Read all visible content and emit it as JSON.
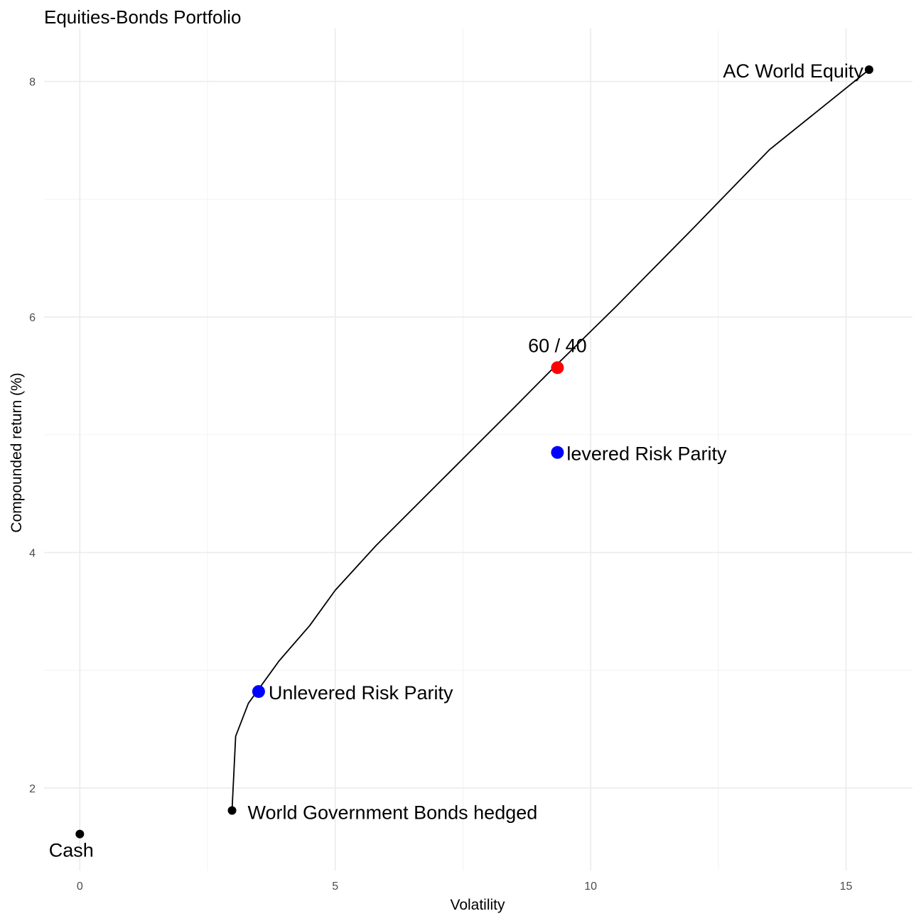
{
  "chart_data": {
    "type": "scatter",
    "title": "Equities-Bonds Portfolio",
    "xlabel": "Volatility",
    "ylabel": "Compounded return (%)",
    "xlim": [
      -0.7,
      16.3
    ],
    "ylim": [
      1.3,
      8.45
    ],
    "x_ticks": [
      0,
      5,
      10,
      15
    ],
    "y_ticks": [
      2,
      4,
      6,
      8
    ],
    "grid": true,
    "frontier": {
      "x": [
        2.98,
        3.05,
        3.3,
        3.9,
        4.5,
        5.0,
        5.8,
        7.0,
        8.5,
        9.3,
        10.5,
        12.0,
        13.5,
        15.45
      ],
      "y": [
        1.81,
        2.44,
        2.72,
        3.08,
        3.38,
        3.68,
        4.06,
        4.58,
        5.23,
        5.58,
        6.09,
        6.75,
        7.42,
        8.1
      ]
    },
    "points": [
      {
        "label": "AC World Equity",
        "x": 15.45,
        "y": 8.1,
        "color": "#000000",
        "kind": "asset"
      },
      {
        "label": "60 / 40",
        "x": 9.35,
        "y": 5.57,
        "color": "#ff0000",
        "kind": "portfolio"
      },
      {
        "label": "levered Risk Parity",
        "x": 9.35,
        "y": 4.85,
        "color": "#0000ff",
        "kind": "portfolio"
      },
      {
        "label": "Unlevered Risk Parity",
        "x": 3.5,
        "y": 2.82,
        "color": "#0000ff",
        "kind": "portfolio"
      },
      {
        "label": "World Government Bonds hedged",
        "x": 2.98,
        "y": 1.81,
        "color": "#000000",
        "kind": "asset"
      },
      {
        "label": "Cash",
        "x": 0.0,
        "y": 1.61,
        "color": "#000000",
        "kind": "asset"
      }
    ]
  }
}
